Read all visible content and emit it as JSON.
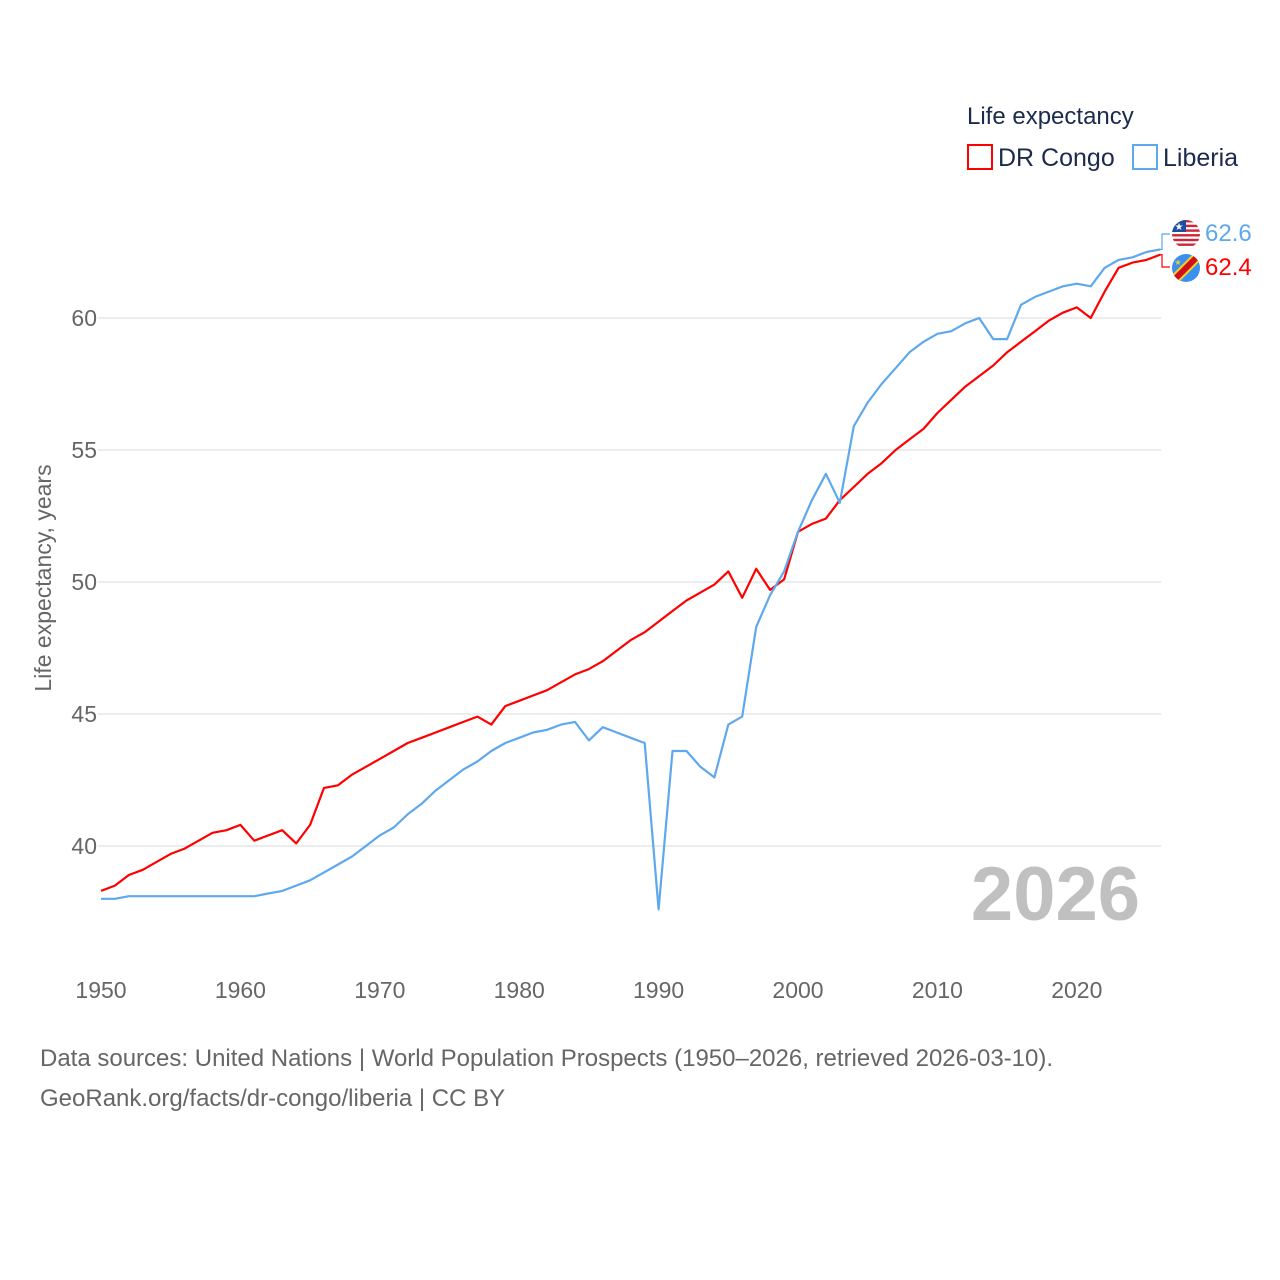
{
  "chart_data": {
    "type": "line",
    "title": "",
    "legend_title": "Life expectancy",
    "legend_position": "top-right",
    "ylabel": "Life expectancy, years",
    "xlabel": "",
    "xlim": [
      1950,
      2026
    ],
    "ylim": [
      36.5,
      64
    ],
    "x_ticks": [
      1950,
      1960,
      1970,
      1980,
      1990,
      2000,
      2010,
      2020
    ],
    "y_ticks": [
      40,
      45,
      50,
      55,
      60
    ],
    "grid": true,
    "year_watermark": "2026",
    "x": [
      1950,
      1951,
      1952,
      1953,
      1954,
      1955,
      1956,
      1957,
      1958,
      1959,
      1960,
      1961,
      1962,
      1963,
      1964,
      1965,
      1966,
      1967,
      1968,
      1969,
      1970,
      1971,
      1972,
      1973,
      1974,
      1975,
      1976,
      1977,
      1978,
      1979,
      1980,
      1981,
      1982,
      1983,
      1984,
      1985,
      1986,
      1987,
      1988,
      1989,
      1990,
      1991,
      1992,
      1993,
      1994,
      1995,
      1996,
      1997,
      1998,
      1999,
      2000,
      2001,
      2002,
      2003,
      2004,
      2005,
      2006,
      2007,
      2008,
      2009,
      2010,
      2011,
      2012,
      2013,
      2014,
      2015,
      2016,
      2017,
      2018,
      2019,
      2020,
      2021,
      2022,
      2023,
      2024,
      2025,
      2026
    ],
    "series": [
      {
        "name": "DR Congo",
        "color": "#ff0000",
        "end_label": "62.4",
        "flag": "dr-congo-flag",
        "values": [
          38.3,
          38.5,
          38.9,
          39.1,
          39.4,
          39.7,
          39.9,
          40.2,
          40.5,
          40.6,
          40.8,
          40.2,
          40.4,
          40.6,
          40.1,
          40.8,
          42.2,
          42.3,
          42.7,
          43.0,
          43.3,
          43.6,
          43.9,
          44.1,
          44.3,
          44.5,
          44.7,
          44.9,
          44.6,
          45.3,
          45.5,
          45.7,
          45.9,
          46.2,
          46.5,
          46.7,
          47.0,
          47.4,
          47.8,
          48.1,
          48.5,
          48.9,
          49.3,
          49.6,
          49.9,
          50.4,
          49.4,
          50.5,
          49.7,
          50.1,
          51.9,
          52.2,
          52.4,
          53.1,
          53.6,
          54.1,
          54.5,
          55.0,
          55.4,
          55.8,
          56.4,
          56.9,
          57.4,
          57.8,
          58.2,
          58.7,
          59.1,
          59.5,
          59.9,
          60.2,
          60.4,
          60.0,
          61.0,
          61.9,
          62.1,
          62.2,
          62.4
        ]
      },
      {
        "name": "Liberia",
        "color": "#5ea8ee",
        "end_label": "62.6",
        "flag": "liberia-flag",
        "values": [
          38.0,
          38.0,
          38.1,
          38.1,
          38.1,
          38.1,
          38.1,
          38.1,
          38.1,
          38.1,
          38.1,
          38.1,
          38.2,
          38.3,
          38.5,
          38.7,
          39.0,
          39.3,
          39.6,
          40.0,
          40.4,
          40.7,
          41.2,
          41.6,
          42.1,
          42.5,
          42.9,
          43.2,
          43.6,
          43.9,
          44.1,
          44.3,
          44.4,
          44.6,
          44.7,
          44.0,
          44.5,
          44.3,
          44.1,
          43.9,
          37.6,
          43.6,
          43.6,
          43.0,
          42.6,
          44.6,
          44.9,
          48.3,
          49.5,
          50.4,
          51.9,
          53.1,
          54.1,
          53.0,
          55.9,
          56.8,
          57.5,
          58.1,
          58.7,
          59.1,
          59.4,
          59.5,
          59.8,
          60.0,
          59.2,
          59.2,
          60.5,
          60.8,
          61.0,
          61.2,
          61.3,
          61.2,
          61.9,
          62.2,
          62.3,
          62.5,
          62.6
        ]
      }
    ]
  },
  "footer": {
    "line1": "Data sources: United Nations | World Population Prospects (1950–2026, retrieved 2026-03-10).",
    "line2": "GeoRank.org/facts/dr-congo/liberia | CC BY"
  }
}
